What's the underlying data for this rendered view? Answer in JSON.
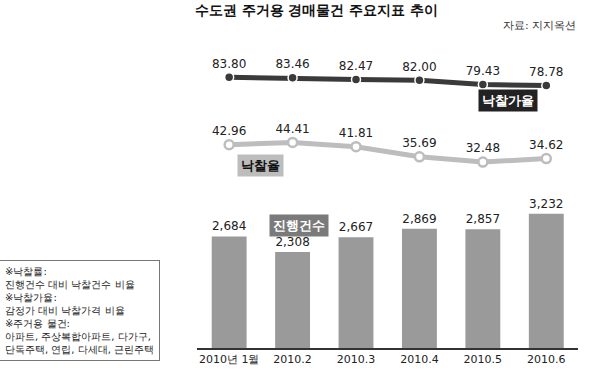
{
  "chart_data": {
    "type": "bar",
    "title": "수도권 주거용 경매물건 주요지표 추이",
    "source": "자료: 지지옥션",
    "notes": [
      "※낙찰률:",
      "진행건수 대비 낙찰건수 비율",
      "※낙찰가율:",
      "감정가 대비 낙찰가격 비율",
      "※주거용 물건:",
      "아파트, 주상복합아파트, 다가구,",
      "단독주택, 연립, 다세대, 근린주택"
    ],
    "categories": [
      "2010년 1월",
      "2010.2",
      "2010.3",
      "2010.4",
      "2010.5",
      "2010.6"
    ],
    "series": [
      {
        "name": "진행건수",
        "type": "bar",
        "color": "#9a9a9a",
        "values": [
          2684,
          2308,
          2667,
          2869,
          2857,
          3232
        ],
        "value_labels": [
          "2,684",
          "2,308",
          "2,667",
          "2,869",
          "2,857",
          "3,232"
        ]
      },
      {
        "name": "낙찰가율",
        "type": "line",
        "axis": "y2",
        "color": "#3a3a3a",
        "marker": "circle",
        "values": [
          83.8,
          83.46,
          82.47,
          82.0,
          79.43,
          78.78
        ],
        "value_labels": [
          "83.80",
          "83.46",
          "82.47",
          "82.00",
          "79.43",
          "78.78"
        ]
      },
      {
        "name": "낙찰율",
        "type": "line",
        "axis": "y2",
        "color": "#bdbdbd",
        "marker": "circle-open",
        "values": [
          42.96,
          44.41,
          41.81,
          35.69,
          32.48,
          34.62
        ],
        "value_labels": [
          "42.96",
          "44.41",
          "41.81",
          "35.69",
          "32.48",
          "34.62"
        ]
      }
    ],
    "ylim": [
      0,
      3400
    ],
    "yticks": [
      0,
      3400
    ],
    "y2lim": [
      15,
      110
    ],
    "y2ticks": [
      15,
      110
    ],
    "data_labels": true,
    "tick_labels": "x",
    "grid": false
  }
}
